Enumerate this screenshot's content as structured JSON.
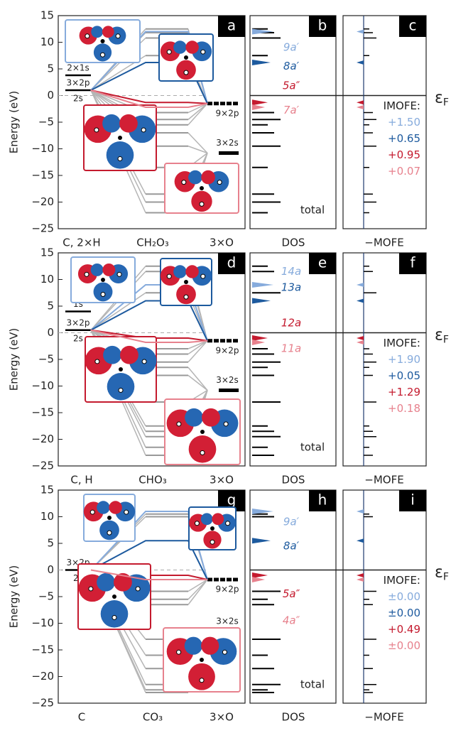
{
  "y_axis": {
    "title": "Energy (eV)",
    "ylim": [
      -25,
      15
    ],
    "yticks": [
      15,
      10,
      5,
      0,
      {
        "value": -5,
        "label": "−5"
      },
      {
        "value": -10,
        "label": "−10"
      },
      {
        "value": -15,
        "label": "−15"
      },
      {
        "value": -20,
        "label": "−20"
      },
      {
        "value": -25,
        "label": "−25"
      }
    ]
  },
  "fermi_label": {
    "symbol": "ε",
    "subscript": "F"
  },
  "panels": [
    {
      "letters": [
        "a",
        "b",
        "c"
      ],
      "bottom_labels": [
        "C, 2×H",
        "CH₂O₃",
        "3×O",
        "DOS",
        "−MOFE"
      ],
      "left_levels": [
        {
          "label": "2×1s",
          "value": 3.8
        },
        {
          "label": "3×2p",
          "value": 1
        },
        {
          "label": "2s",
          "value": 1
        }
      ],
      "right_levels": [
        {
          "label": "9×2p",
          "value": -1.5
        },
        {
          "label": "3×2s",
          "value": -10.8
        }
      ],
      "levels": [
        12.5,
        11.8,
        10.8,
        7.5,
        -3.2,
        -4.5,
        -5.5,
        -7,
        -9.5,
        -13.5,
        -18.5,
        -20,
        -22
      ],
      "orbitals": [
        {
          "name": "9a′",
          "color": "#86abdc",
          "energy": 12,
          "imofe": "+1.50"
        },
        {
          "name": "8a′",
          "color": "#1d5a9e",
          "energy": 6.2,
          "imofe": "+0.65"
        },
        {
          "name": "5a″",
          "color": "#c41a2e",
          "energy": -1.3,
          "imofe": "+0.95"
        },
        {
          "name": "7a′",
          "color": "#e7818d",
          "energy": -2.2,
          "imofe": "+0.07"
        }
      ],
      "imofe_title": "IMOFE:",
      "total_label": "total"
    },
    {
      "letters": [
        "d",
        "e",
        "f"
      ],
      "bottom_labels": [
        "C, H",
        "CHO₃",
        "3×O",
        "DOS",
        "−MOFE"
      ],
      "left_levels": [
        {
          "label": "1s",
          "value": 4
        },
        {
          "label": "3×2p",
          "value": 0.5
        },
        {
          "label": "2s",
          "value": 0.5
        }
      ],
      "right_levels": [
        {
          "label": "9×2p",
          "value": -1.5
        },
        {
          "label": "3×2s",
          "value": -10.8
        }
      ],
      "levels": [
        12.5,
        11.5,
        7.5,
        -3,
        -4,
        -5.5,
        -6.5,
        -8,
        -13,
        -17.5,
        -18.5,
        -19.5,
        -21.5,
        -23
      ],
      "orbitals": [
        {
          "name": "14a",
          "color": "#86abdc",
          "energy": 9,
          "imofe": "+1.90"
        },
        {
          "name": "13a",
          "color": "#1d5a9e",
          "energy": 6,
          "imofe": "+0.05"
        },
        {
          "name": "12a",
          "color": "#c41a2e",
          "energy": -1,
          "imofe": "+1.29"
        },
        {
          "name": "11a",
          "color": "#e7818d",
          "energy": -1.8,
          "imofe": "+0.18"
        }
      ],
      "imofe_title": "IMOFE:",
      "total_label": "total"
    },
    {
      "letters": [
        "g",
        "h",
        "i"
      ],
      "bottom_labels": [
        "C",
        "CO₃",
        "3×O",
        "DOS",
        "−MOFE"
      ],
      "left_levels": [
        {
          "label": "3×2p",
          "value": 0
        },
        {
          "label": "2s",
          "value": 0
        }
      ],
      "right_levels": [
        {
          "label": "9×2p",
          "value": -1.8
        },
        {
          "label": "3×2s",
          "value": -11.5
        }
      ],
      "levels": [
        10.5,
        10,
        -4,
        -5.5,
        -6.5,
        -13,
        -16,
        -18.5,
        -21.5,
        -22.5,
        -23
      ],
      "orbitals": [
        {
          "name": "9a′",
          "color": "#86abdc",
          "energy": 11,
          "imofe": "±0.00"
        },
        {
          "name": "8a′",
          "color": "#1d5a9e",
          "energy": 5.5,
          "imofe": "±0.00"
        },
        {
          "name": "5a″",
          "color": "#c41a2e",
          "energy": -1,
          "imofe": "+0.49"
        },
        {
          "name": "4a″",
          "color": "#e7818d",
          "energy": -1.8,
          "imofe": "±0.00"
        }
      ],
      "imofe_title": "IMOFE:",
      "total_label": "total"
    }
  ]
}
